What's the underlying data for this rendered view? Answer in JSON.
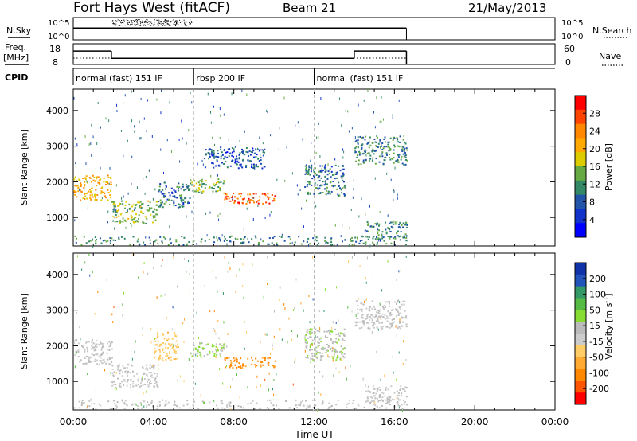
{
  "header": {
    "station": "Fort Hays West (fitACF)",
    "beam": "Beam 21",
    "date": "21/May/2013"
  },
  "panels": {
    "nsky_label": "N.Sky",
    "nsearch_label": "N.Search",
    "freq_label": "Freq.",
    "freq_unit": "[MHz]",
    "nave_label": "Nave",
    "cpid_label": "CPID",
    "noise_ticks_left": [
      "10^5",
      "10^0"
    ],
    "noise_ticks_right": [
      "10^5",
      "10^0"
    ],
    "freq_ticks": [
      "18",
      "8"
    ],
    "nave_ticks": [
      "60",
      "0"
    ]
  },
  "cpid_segments": [
    {
      "label": "normal (fast) 151 IF",
      "start_hour": 0,
      "end_hour": 6
    },
    {
      "label": "rbsp 200 IF",
      "start_hour": 6,
      "end_hour": 12
    },
    {
      "label": "normal (fast) 151 IF",
      "start_hour": 12,
      "end_hour": 16.6
    }
  ],
  "axes": {
    "ylabel": "Slant Range [km]",
    "xlabel": "Time UT",
    "x_ticks": [
      "00:00",
      "04:00",
      "08:00",
      "12:00",
      "16:00",
      "20:00",
      "00:00"
    ],
    "y_ticks": [
      "1000",
      "2000",
      "3000",
      "4000"
    ],
    "xlim_hours": [
      0,
      24
    ],
    "ylim_km": [
      200,
      4600
    ]
  },
  "power_scale": {
    "label": "Power [dB]",
    "ticks": [
      "28",
      "24",
      "20",
      "16",
      "12",
      "8",
      "4"
    ],
    "colors": [
      "#ff0000",
      "#ff4400",
      "#ff8800",
      "#ffaa00",
      "#ddcc00",
      "#66aa44",
      "#338866",
      "#2255aa",
      "#1133cc",
      "#0000ff"
    ]
  },
  "velocity_scale": {
    "label": "Velocity [m s",
    "label_sup": "-1",
    "label_end": "]",
    "ticks": [
      "200",
      "100",
      "50",
      "15",
      "-15",
      "-50",
      "-100",
      "-200"
    ],
    "colors": [
      "#1133aa",
      "#2255bb",
      "#339966",
      "#55bb44",
      "#88dd33",
      "#bbbbbb",
      "#cccccc",
      "#ffcc66",
      "#ffaa33",
      "#ff8800",
      "#ff5500",
      "#ff0000"
    ]
  },
  "chart_data": {
    "type": "heatmap",
    "title": "Fort Hays West (fitACF)",
    "xlabel": "Time UT",
    "ylabel": "Slant Range [km]",
    "xlim": [
      0,
      24
    ],
    "ylim": [
      200,
      4600
    ],
    "nsky": {
      "level_log10": 2.6,
      "start_hour": 0,
      "end_hour": 16.6
    },
    "frequency_mhz": [
      {
        "start_hour": 0,
        "end_hour": 1.9,
        "value": 14.5
      },
      {
        "start_hour": 1.9,
        "end_hour": 14.0,
        "value": 11.0
      },
      {
        "start_hour": 14.0,
        "end_hour": 16.6,
        "value": 14.5
      }
    ],
    "power_features": [
      {
        "t0": 0.0,
        "t1": 1.9,
        "r0": 1500,
        "r1": 2200,
        "power_db": 20
      },
      {
        "t0": 1.9,
        "t1": 4.2,
        "r0": 850,
        "r1": 1500,
        "power_db": 14
      },
      {
        "t0": 4.2,
        "t1": 5.8,
        "r0": 1300,
        "r1": 2000,
        "power_db": 8
      },
      {
        "t0": 5.8,
        "t1": 7.5,
        "r0": 1700,
        "r1": 2100,
        "power_db": 14
      },
      {
        "t0": 7.5,
        "t1": 10.1,
        "r0": 1400,
        "r1": 1700,
        "power_db": 26
      },
      {
        "t0": 6.5,
        "t1": 9.5,
        "r0": 2400,
        "r1": 3000,
        "power_db": 6
      },
      {
        "t0": 11.5,
        "t1": 13.5,
        "r0": 1600,
        "r1": 2500,
        "power_db": 8
      },
      {
        "t0": 14.0,
        "t1": 16.6,
        "r0": 2500,
        "r1": 3300,
        "power_db": 10
      },
      {
        "t0": 14.5,
        "t1": 16.6,
        "r0": 400,
        "r1": 900,
        "power_db": 10
      }
    ],
    "velocity_features": [
      {
        "t0": 0.0,
        "t1": 1.9,
        "r0": 1500,
        "r1": 2200,
        "velocity": 0
      },
      {
        "t0": 1.9,
        "t1": 4.2,
        "r0": 850,
        "r1": 1500,
        "velocity": 0
      },
      {
        "t0": 4.0,
        "t1": 5.2,
        "r0": 1600,
        "r1": 2400,
        "velocity": -60
      },
      {
        "t0": 5.8,
        "t1": 7.5,
        "r0": 1700,
        "r1": 2100,
        "velocity": 40
      },
      {
        "t0": 7.5,
        "t1": 10.1,
        "r0": 1400,
        "r1": 1700,
        "velocity": -120
      },
      {
        "t0": 11.5,
        "t1": 13.5,
        "r0": 1600,
        "r1": 2500,
        "velocity": 30
      },
      {
        "t0": 14.0,
        "t1": 16.6,
        "r0": 2500,
        "r1": 3300,
        "velocity": 0
      },
      {
        "t0": 14.5,
        "t1": 16.6,
        "r0": 400,
        "r1": 900,
        "velocity": 0
      }
    ]
  }
}
